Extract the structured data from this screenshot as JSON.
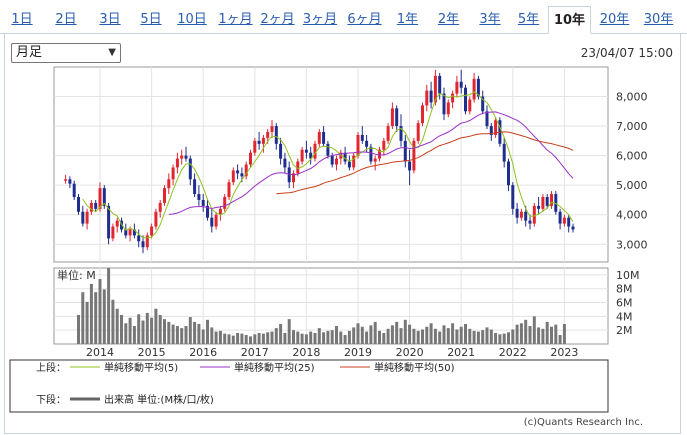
{
  "tabs": [
    "1日",
    "2日",
    "3日",
    "5日",
    "10日",
    "1ヶ月",
    "2ヶ月",
    "3ヶ月",
    "6ヶ月",
    "1年",
    "2年",
    "3年",
    "5年",
    "10年",
    "20年",
    "30年"
  ],
  "active_tab_index": 13,
  "period_select": {
    "value": "月足"
  },
  "timestamp": "23/04/07 15:00",
  "credit": "(c)Quants Research Inc.",
  "colors": {
    "up": "#e0262f",
    "down": "#1f2d8c",
    "ma5": "#8ec21f",
    "ma25": "#9b30c8",
    "ma50": "#c8401c",
    "volume": "#777777"
  },
  "legend": {
    "upper_label": "上段：",
    "lower_label": "下段：",
    "items": [
      {
        "label": "単純移動平均(5)",
        "color": "#8ec21f"
      },
      {
        "label": "単純移動平均(25)",
        "color": "#9b30c8"
      },
      {
        "label": "単純移動平均(50)",
        "color": "#c8401c"
      }
    ],
    "volume_label": "出来高 単位:(M株/口/枚)"
  },
  "chart_data": {
    "type": "candlestick",
    "price_axis": {
      "ticks": [
        "8,000",
        "7,000",
        "6,000",
        "5,000",
        "4,000",
        "3,000"
      ],
      "values": [
        8000,
        7000,
        6000,
        5000,
        4000,
        3000
      ],
      "range": [
        2400,
        9000
      ]
    },
    "volume_axis": {
      "unit_label": "単位: M",
      "ticks": [
        "10M",
        "8M",
        "6M",
        "4M",
        "2M"
      ],
      "values": [
        10,
        8,
        6,
        4,
        2
      ],
      "range": [
        0,
        11
      ]
    },
    "x_axis": {
      "ticks": [
        "2014",
        "2015",
        "2016",
        "2017",
        "2018",
        "2019",
        "2020",
        "2021",
        "2022",
        "2023"
      ]
    },
    "start": "2013-05",
    "candles": [
      [
        5150,
        5350,
        5050,
        5200
      ],
      [
        5200,
        5300,
        4900,
        5050
      ],
      [
        5050,
        5150,
        4500,
        4600
      ],
      [
        4600,
        4700,
        4000,
        4100
      ],
      [
        4100,
        4300,
        3600,
        3700
      ],
      [
        3700,
        4200,
        3500,
        4100
      ],
      [
        4100,
        4500,
        4000,
        4400
      ],
      [
        4400,
        4500,
        4100,
        4200
      ],
      [
        4200,
        5100,
        4100,
        4900
      ],
      [
        4900,
        5000,
        4200,
        4300
      ],
      [
        4300,
        4400,
        3000,
        3200
      ],
      [
        3200,
        3700,
        3100,
        3600
      ],
      [
        3600,
        3900,
        3400,
        3800
      ],
      [
        3800,
        3900,
        3400,
        3500
      ],
      [
        3500,
        3700,
        3200,
        3300
      ],
      [
        3300,
        3600,
        3100,
        3500
      ],
      [
        3500,
        3700,
        3200,
        3300
      ],
      [
        3300,
        3500,
        2900,
        3100
      ],
      [
        3100,
        3300,
        2700,
        2900
      ],
      [
        2900,
        3400,
        2800,
        3300
      ],
      [
        3300,
        3700,
        3200,
        3600
      ],
      [
        3600,
        4200,
        3500,
        4100
      ],
      [
        4100,
        4500,
        3900,
        4400
      ],
      [
        4400,
        5000,
        4300,
        4900
      ],
      [
        4900,
        5400,
        4700,
        5200
      ],
      [
        5200,
        5700,
        5000,
        5600
      ],
      [
        5600,
        6100,
        5400,
        5900
      ],
      [
        5900,
        6200,
        5700,
        6000
      ],
      [
        6000,
        6300,
        5800,
        5900
      ],
      [
        5900,
        6000,
        5000,
        5200
      ],
      [
        5200,
        5400,
        4600,
        4700
      ],
      [
        4700,
        5000,
        4300,
        4500
      ],
      [
        4500,
        4700,
        4100,
        4300
      ],
      [
        4300,
        4500,
        3800,
        3900
      ],
      [
        3900,
        4200,
        3400,
        3600
      ],
      [
        3600,
        4100,
        3500,
        4000
      ],
      [
        4000,
        4300,
        3800,
        4200
      ],
      [
        4200,
        4700,
        4100,
        4600
      ],
      [
        4600,
        5200,
        4500,
        5100
      ],
      [
        5100,
        5600,
        5000,
        5500
      ],
      [
        5500,
        5700,
        5200,
        5400
      ],
      [
        5400,
        5600,
        5100,
        5300
      ],
      [
        5300,
        5800,
        5200,
        5700
      ],
      [
        5700,
        6200,
        5600,
        6100
      ],
      [
        6100,
        6600,
        6000,
        6500
      ],
      [
        6500,
        6800,
        6200,
        6400
      ],
      [
        6400,
        6700,
        6100,
        6600
      ],
      [
        6600,
        6900,
        6400,
        6800
      ],
      [
        6800,
        7200,
        6600,
        7000
      ],
      [
        7000,
        7100,
        6200,
        6400
      ],
      [
        6400,
        6600,
        5700,
        5900
      ],
      [
        5900,
        6100,
        5400,
        5600
      ],
      [
        5600,
        5800,
        4900,
        5100
      ],
      [
        5100,
        5500,
        4900,
        5400
      ],
      [
        5400,
        5900,
        5300,
        5800
      ],
      [
        5800,
        6300,
        5700,
        6200
      ],
      [
        6200,
        6500,
        5900,
        6100
      ],
      [
        6100,
        6300,
        5700,
        5900
      ],
      [
        5900,
        6500,
        5800,
        6400
      ],
      [
        6400,
        6900,
        6300,
        6800
      ],
      [
        6800,
        7000,
        6300,
        6400
      ],
      [
        6400,
        6500,
        5900,
        6000
      ],
      [
        6000,
        6100,
        5600,
        5700
      ],
      [
        5700,
        6000,
        5500,
        5900
      ],
      [
        5900,
        6200,
        5700,
        6100
      ],
      [
        6100,
        6300,
        5700,
        5800
      ],
      [
        5800,
        6000,
        5500,
        5600
      ],
      [
        5600,
        6100,
        5500,
        6000
      ],
      [
        6000,
        6800,
        5900,
        6700
      ],
      [
        6700,
        7000,
        6400,
        6500
      ],
      [
        6500,
        6700,
        6100,
        6300
      ],
      [
        6300,
        6400,
        5700,
        5800
      ],
      [
        5800,
        6000,
        5500,
        5900
      ],
      [
        5900,
        6300,
        5800,
        6200
      ],
      [
        6200,
        6600,
        6000,
        6500
      ],
      [
        6500,
        7100,
        6400,
        7000
      ],
      [
        7000,
        7800,
        6900,
        7600
      ],
      [
        7600,
        7700,
        6800,
        7000
      ],
      [
        7000,
        7400,
        6300,
        6500
      ],
      [
        6500,
        6700,
        5600,
        5800
      ],
      [
        5800,
        6200,
        5000,
        5500
      ],
      [
        5500,
        6600,
        5400,
        6500
      ],
      [
        6500,
        7200,
        6400,
        7100
      ],
      [
        7100,
        7800,
        7000,
        7700
      ],
      [
        7700,
        8400,
        7500,
        8200
      ],
      [
        8200,
        8500,
        7600,
        7800
      ],
      [
        7800,
        8900,
        7700,
        8700
      ],
      [
        8700,
        8800,
        7900,
        8100
      ],
      [
        8100,
        8300,
        7200,
        7400
      ],
      [
        7400,
        7900,
        7300,
        7800
      ],
      [
        7800,
        8200,
        7600,
        8100
      ],
      [
        8100,
        8700,
        8000,
        8500
      ],
      [
        8500,
        8900,
        8100,
        8300
      ],
      [
        8300,
        8400,
        7400,
        7500
      ],
      [
        7500,
        8000,
        7400,
        7900
      ],
      [
        7900,
        8800,
        7800,
        8600
      ],
      [
        8600,
        8700,
        7900,
        8000
      ],
      [
        8000,
        8200,
        7400,
        7500
      ],
      [
        7500,
        7700,
        6900,
        7000
      ],
      [
        7000,
        7100,
        6500,
        6700
      ],
      [
        6700,
        7300,
        6600,
        7200
      ],
      [
        7200,
        7300,
        6300,
        6400
      ],
      [
        6400,
        6600,
        5600,
        5800
      ],
      [
        5800,
        5900,
        4800,
        5000
      ],
      [
        5000,
        5100,
        4000,
        4200
      ],
      [
        4200,
        4400,
        3700,
        3900
      ],
      [
        3900,
        4200,
        3800,
        4100
      ],
      [
        4100,
        4300,
        3600,
        3800
      ],
      [
        3800,
        4000,
        3500,
        3700
      ],
      [
        3700,
        4400,
        3600,
        4300
      ],
      [
        4300,
        4600,
        4000,
        4200
      ],
      [
        4200,
        4700,
        4100,
        4600
      ],
      [
        4600,
        4700,
        4200,
        4300
      ],
      [
        4300,
        4800,
        4200,
        4700
      ],
      [
        4700,
        4800,
        4000,
        4100
      ],
      [
        4100,
        4200,
        3500,
        3700
      ],
      [
        3700,
        4000,
        3600,
        3900
      ],
      [
        3900,
        4000,
        3400,
        3600
      ],
      [
        3600,
        3700,
        3400,
        3500
      ]
    ],
    "volume": [
      0,
      0,
      0,
      4.2,
      7.5,
      6.1,
      8.7,
      7.5,
      9.4,
      7.9,
      11.0,
      6.4,
      5.1,
      4.2,
      3.0,
      3.8,
      2.6,
      4.3,
      3.4,
      4.5,
      3.8,
      5.1,
      4.2,
      3.6,
      3.2,
      2.8,
      2.6,
      2.3,
      2.6,
      3.9,
      3.2,
      2.9,
      2.1,
      3.5,
      2.4,
      1.8,
      1.9,
      1.5,
      1.4,
      1.2,
      1.6,
      1.5,
      1.3,
      1.1,
      1.4,
      1.6,
      1.5,
      1.7,
      1.8,
      2.3,
      2.9,
      1.6,
      3.6,
      2.0,
      1.8,
      1.5,
      1.4,
      1.8,
      1.6,
      2.3,
      1.7,
      1.9,
      2.0,
      2.6,
      1.8,
      1.3,
      1.9,
      2.4,
      3.0,
      2.5,
      1.8,
      2.7,
      3.2,
      1.9,
      1.6,
      2.2,
      2.7,
      3.2,
      2.3,
      3.5,
      2.8,
      2.2,
      1.9,
      2.1,
      2.5,
      3.0,
      2.2,
      1.8,
      2.7,
      2.3,
      3.0,
      2.1,
      2.5,
      2.9,
      2.2,
      1.9,
      1.8,
      2.0,
      2.4,
      2.1,
      1.6,
      1.4,
      1.5,
      1.7,
      2.1,
      2.8,
      3.0,
      3.5,
      2.6,
      4.0,
      2.4,
      2.2,
      3.2,
      2.5,
      2.8,
      1.3,
      2.9
    ]
  }
}
